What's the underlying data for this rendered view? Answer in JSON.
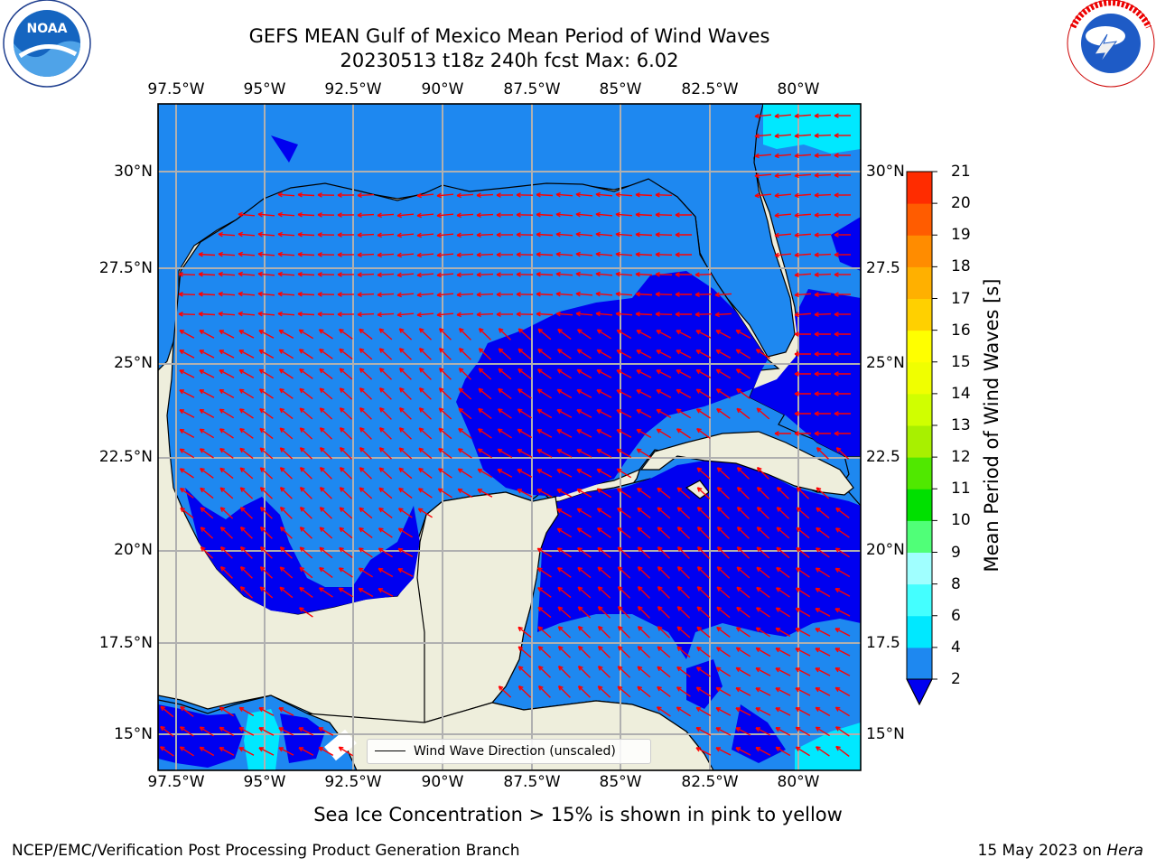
{
  "header": {
    "title_line1": "GEFS MEAN Gulf of Mexico Mean Period of Wind Waves",
    "title_line2": "20230513 t18z 240h fcst   Max: 6.02"
  },
  "logos": {
    "left": "NOAA",
    "left_ring": "NATIONAL OCEANIC AND ATMOSPHERIC ADMINISTRATION • U.S. DEPARTMENT OF COMMERCE",
    "right_ring": "NATIONAL WEATHER SERVICE"
  },
  "map": {
    "lon_ticks": [
      "97.5°W",
      "95°W",
      "92.5°W",
      "90°W",
      "87.5°W",
      "85°W",
      "82.5°W",
      "80°W"
    ],
    "lat_ticks_left": [
      "30°N",
      "27.5°N",
      "25°N",
      "22.5°N",
      "20°N",
      "17.5°N",
      "15°N"
    ],
    "lat_ticks_right": [
      "30°N",
      "27.5",
      "25°N",
      "22.5",
      "20°N",
      "17.5",
      "15°N"
    ],
    "legend_label": "Wind Wave Direction (unscaled)",
    "colors": {
      "land": "#eeeedc",
      "level_2_4": "#1e88f0",
      "level_lt2": "#0000f0",
      "level_4_6": "#00e8ff",
      "vectors": "#ff0000"
    }
  },
  "colorbar": {
    "label": "Mean Period of Wind Waves [s]",
    "ticks": [
      "2",
      "4",
      "6",
      "8",
      "9",
      "10",
      "11",
      "12",
      "13",
      "14",
      "15",
      "16",
      "17",
      "18",
      "19",
      "20",
      "21"
    ],
    "colors": [
      "#1e88f0",
      "#00e8ff",
      "#44ffff",
      "#a0ffff",
      "#50ff78",
      "#00e000",
      "#50e800",
      "#a8f000",
      "#d0ff00",
      "#f0ff00",
      "#ffff00",
      "#ffd000",
      "#ffb000",
      "#ff8c00",
      "#ff5c00",
      "#ff2c00"
    ],
    "extend_color": "#0000f0"
  },
  "footer": {
    "note": "Sea Ice Concentration > 15% is shown in pink to yellow",
    "left": "NCEP/EMC/Verification Post Processing Product Generation Branch",
    "right_prefix": "15 May 2023 on ",
    "right_host": "Hera"
  }
}
